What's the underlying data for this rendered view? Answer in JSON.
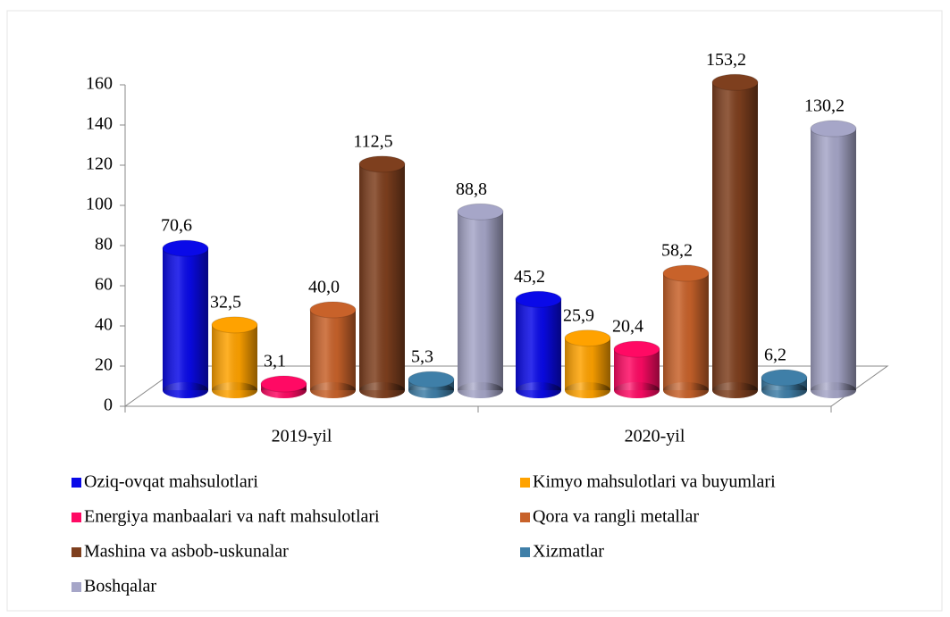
{
  "chart_data": {
    "type": "bar",
    "categories": [
      "2019-yil",
      "2020-yil"
    ],
    "series": [
      {
        "name": "Oziq-ovqat mahsulotlari",
        "color": "#0a0ae8",
        "values": [
          70.6,
          45.2
        ],
        "value_labels": [
          "70,6",
          "45,2"
        ]
      },
      {
        "name": "Kimyo mahsulotlari va buyumlari",
        "color": "#ffa200",
        "values": [
          32.5,
          25.9
        ],
        "value_labels": [
          "32,5",
          "25,9"
        ]
      },
      {
        "name": "Energiya manbaalari va naft mahsulotlari",
        "color": "#ff0a64",
        "values": [
          3.1,
          20.4
        ],
        "value_labels": [
          "3,1",
          "20,4"
        ]
      },
      {
        "name": "Qora va rangli metallar",
        "color": "#c8622a",
        "values": [
          40.0,
          58.2
        ],
        "value_labels": [
          "40,0",
          "58,2"
        ]
      },
      {
        "name": "Mashina va asbob-uskunalar",
        "color": "#7e3f1e",
        "values": [
          112.5,
          153.2
        ],
        "value_labels": [
          "112,5",
          "153,2"
        ]
      },
      {
        "name": "Xizmatlar",
        "color": "#3f7fa8",
        "values": [
          5.3,
          6.2
        ],
        "value_labels": [
          "5,3",
          "6,2"
        ]
      },
      {
        "name": "Boshqalar",
        "color": "#a6a6c8",
        "values": [
          88.8,
          130.2
        ],
        "value_labels": [
          "88,8",
          "130,2"
        ]
      }
    ],
    "ylim": [
      0,
      160
    ],
    "yticks": [
      0,
      20,
      40,
      60,
      80,
      100,
      120,
      140,
      160
    ]
  }
}
